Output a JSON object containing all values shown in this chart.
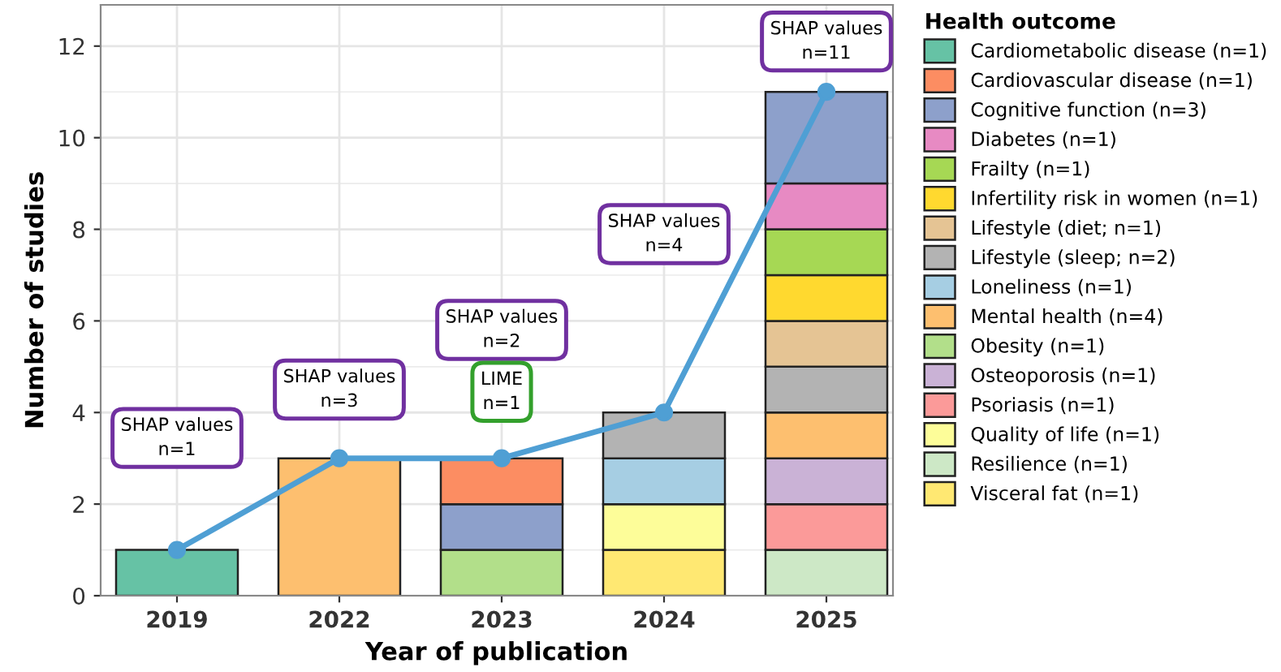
{
  "chart_data": {
    "type": "bar",
    "stacked": true,
    "xlabel": "Year of publication",
    "ylabel": "Number of studies",
    "legend_title": "Health outcome",
    "legend": "right",
    "grid": true,
    "categories": [
      "2019",
      "2022",
      "2023",
      "2024",
      "2025"
    ],
    "ylim": [
      0,
      12.9
    ],
    "yticks": [
      0,
      2,
      4,
      6,
      8,
      10,
      12
    ],
    "series": [
      {
        "name": "Visceral fat (n=1)",
        "color": "#ffe872",
        "values": [
          null,
          null,
          null,
          1,
          null
        ]
      },
      {
        "name": "Resilience (n=1)",
        "color": "#cde8c6",
        "values": [
          null,
          null,
          null,
          null,
          1
        ]
      },
      {
        "name": "Quality of life (n=1)",
        "color": "#fdfd99",
        "values": [
          null,
          null,
          null,
          1,
          null
        ]
      },
      {
        "name": "Psoriasis (n=1)",
        "color": "#fb9a99",
        "values": [
          null,
          null,
          null,
          null,
          1
        ]
      },
      {
        "name": "Osteoporosis (n=1)",
        "color": "#cab2d6",
        "values": [
          null,
          null,
          null,
          null,
          1
        ]
      },
      {
        "name": "Obesity (n=1)",
        "color": "#b2df8a",
        "values": [
          null,
          null,
          1,
          null,
          null
        ]
      },
      {
        "name": "Mental health (n=4)",
        "color": "#fdbf6f",
        "values": [
          null,
          3,
          null,
          null,
          1
        ]
      },
      {
        "name": "Loneliness (n=1)",
        "color": "#a6cee3",
        "values": [
          null,
          null,
          null,
          1,
          null
        ]
      },
      {
        "name": "Lifestyle (sleep; n=2)",
        "color": "#b3b3b3",
        "values": [
          null,
          null,
          null,
          1,
          1
        ]
      },
      {
        "name": "Lifestyle (diet; n=1)",
        "color": "#e5c494",
        "values": [
          null,
          null,
          null,
          null,
          1
        ]
      },
      {
        "name": "Infertility risk in women (n=1)",
        "color": "#ffd92f",
        "values": [
          null,
          null,
          null,
          null,
          1
        ]
      },
      {
        "name": "Frailty (n=1)",
        "color": "#a6d854",
        "values": [
          null,
          null,
          null,
          null,
          1
        ]
      },
      {
        "name": "Diabetes (n=1)",
        "color": "#e78ac3",
        "values": [
          null,
          null,
          null,
          null,
          1
        ]
      },
      {
        "name": "Cognitive function (n=3)",
        "color": "#8da0cb",
        "values": [
          null,
          null,
          1,
          null,
          2
        ]
      },
      {
        "name": "Cardiovascular disease (n=1)",
        "color": "#fc8d62",
        "values": [
          null,
          null,
          1,
          null,
          null
        ]
      },
      {
        "name": "Cardiometabolic disease (n=1)",
        "color": "#66c2a5",
        "values": [
          1,
          null,
          null,
          null,
          null
        ]
      },
      {
        "type": "line",
        "color": "#4f9fd4",
        "marker": "circle",
        "values": [
          1,
          3,
          3,
          4,
          11
        ]
      }
    ],
    "annotations": [
      "SHAP values\nn=1",
      "SHAP values\nn=3",
      "SHAP values\nn=2",
      "LIME\nn=1",
      "SHAP values\nn=4",
      "SHAP values\nn=11"
    ]
  }
}
